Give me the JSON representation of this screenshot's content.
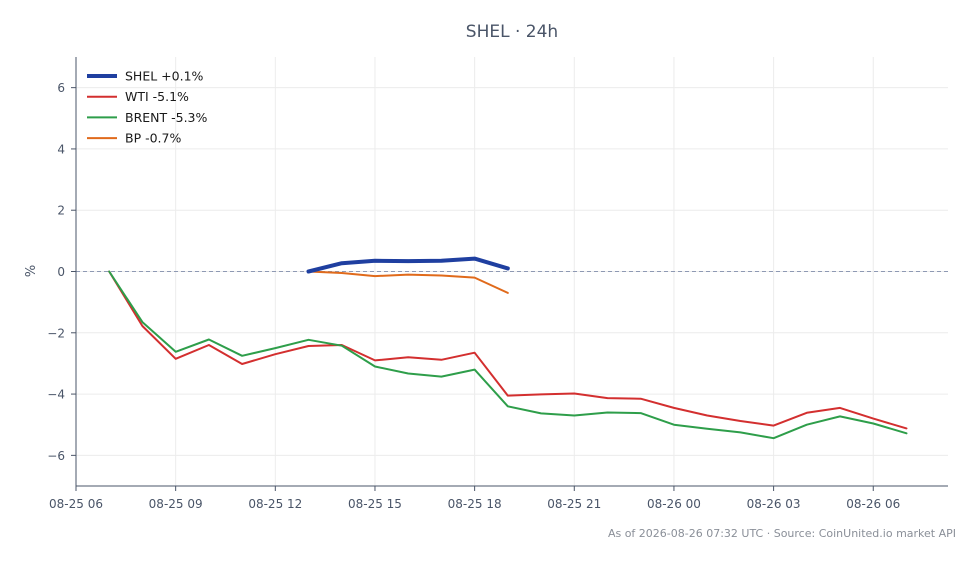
{
  "chart_data": {
    "type": "line",
    "title": "SHEL · 24h",
    "xlabel": "",
    "ylabel": "%",
    "xlim": [
      "2026-08-25 06:00",
      "2026-08-26 08:15"
    ],
    "ylim": [
      -7,
      7
    ],
    "yticks": [
      6,
      4,
      2,
      0,
      -2,
      -4,
      -6
    ],
    "xticks": [
      {
        "label": "08-25 06",
        "t": "2026-08-25 06:00"
      },
      {
        "label": "08-25 09",
        "t": "2026-08-25 09:00"
      },
      {
        "label": "08-25 12",
        "t": "2026-08-25 12:00"
      },
      {
        "label": "08-25 15",
        "t": "2026-08-25 15:00"
      },
      {
        "label": "08-25 18",
        "t": "2026-08-25 18:00"
      },
      {
        "label": "08-25 21",
        "t": "2026-08-25 21:00"
      },
      {
        "label": "08-26 00",
        "t": "2026-08-26 00:00"
      },
      {
        "label": "08-26 03",
        "t": "2026-08-26 03:00"
      },
      {
        "label": "08-26 06",
        "t": "2026-08-26 06:00"
      }
    ],
    "grid": true,
    "legend_position": "top-left",
    "zero_line": true,
    "series": [
      {
        "name": "SHEL +0.1%",
        "color": "#1f3fa0",
        "emphasis": true,
        "t": [
          "2026-08-25 13:00",
          "2026-08-25 14:00",
          "2026-08-25 15:00",
          "2026-08-25 16:00",
          "2026-08-25 17:00",
          "2026-08-25 18:00",
          "2026-08-25 19:00"
        ],
        "values": [
          0.0,
          0.27,
          0.35,
          0.34,
          0.35,
          0.42,
          0.1
        ]
      },
      {
        "name": "WTI -5.1%",
        "color": "#d32f2f",
        "t": [
          "2026-08-25 07:00",
          "2026-08-25 08:00",
          "2026-08-25 09:00",
          "2026-08-25 10:00",
          "2026-08-25 11:00",
          "2026-08-25 12:00",
          "2026-08-25 13:00",
          "2026-08-25 14:00",
          "2026-08-25 15:00",
          "2026-08-25 16:00",
          "2026-08-25 17:00",
          "2026-08-25 18:00",
          "2026-08-25 19:00",
          "2026-08-25 20:00",
          "2026-08-25 21:00",
          "2026-08-25 22:00",
          "2026-08-25 23:00",
          "2026-08-26 00:00",
          "2026-08-26 01:00",
          "2026-08-26 02:00",
          "2026-08-26 03:00",
          "2026-08-26 04:00",
          "2026-08-26 05:00",
          "2026-08-26 06:00",
          "2026-08-26 07:00"
        ],
        "values": [
          0.0,
          -1.78,
          -2.85,
          -2.4,
          -3.02,
          -2.7,
          -2.43,
          -2.4,
          -2.9,
          -2.8,
          -2.88,
          -2.65,
          -4.05,
          -4.01,
          -3.98,
          -4.13,
          -4.15,
          -4.45,
          -4.7,
          -4.88,
          -5.03,
          -4.61,
          -4.45,
          -4.8,
          -5.12
        ]
      },
      {
        "name": "BRENT -5.3%",
        "color": "#2e9e4a",
        "t": [
          "2026-08-25 07:00",
          "2026-08-25 08:00",
          "2026-08-25 09:00",
          "2026-08-25 10:00",
          "2026-08-25 11:00",
          "2026-08-25 12:00",
          "2026-08-25 13:00",
          "2026-08-25 14:00",
          "2026-08-25 15:00",
          "2026-08-25 16:00",
          "2026-08-25 17:00",
          "2026-08-25 18:00",
          "2026-08-25 19:00",
          "2026-08-25 20:00",
          "2026-08-25 21:00",
          "2026-08-25 22:00",
          "2026-08-25 23:00",
          "2026-08-26 00:00",
          "2026-08-26 01:00",
          "2026-08-26 02:00",
          "2026-08-26 03:00",
          "2026-08-26 04:00",
          "2026-08-26 05:00",
          "2026-08-26 06:00",
          "2026-08-26 07:00"
        ],
        "values": [
          0.0,
          -1.65,
          -2.62,
          -2.22,
          -2.75,
          -2.5,
          -2.23,
          -2.42,
          -3.1,
          -3.33,
          -3.43,
          -3.2,
          -4.4,
          -4.63,
          -4.7,
          -4.6,
          -4.62,
          -5.0,
          -5.13,
          -5.25,
          -5.44,
          -5.0,
          -4.73,
          -4.96,
          -5.28
        ]
      },
      {
        "name": "BP -0.7%",
        "color": "#e06a1b",
        "t": [
          "2026-08-25 13:00",
          "2026-08-25 14:00",
          "2026-08-25 15:00",
          "2026-08-25 16:00",
          "2026-08-25 17:00",
          "2026-08-25 18:00",
          "2026-08-25 19:00"
        ],
        "values": [
          0.0,
          -0.05,
          -0.15,
          -0.1,
          -0.13,
          -0.2,
          -0.7
        ]
      }
    ]
  },
  "footer": "As of 2026-08-26 07:32 UTC · Source: CoinUnited.io market API"
}
